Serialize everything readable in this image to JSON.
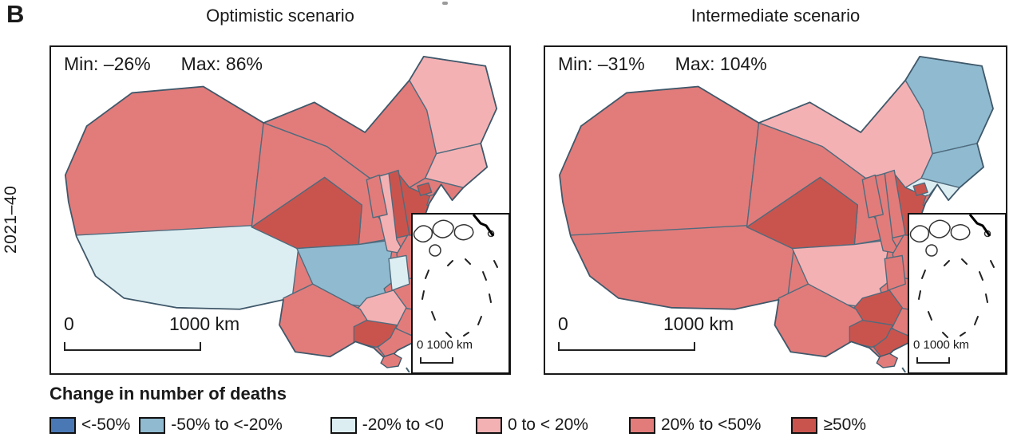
{
  "panel_label": "B",
  "row_label": "2021–40",
  "legend": {
    "title": "Change in number of deaths",
    "items": [
      {
        "label": "<-50%",
        "color": "#4a78b5"
      },
      {
        "label": "-50% to <-20%",
        "color": "#8fbad0"
      },
      {
        "label": "-20% to <0",
        "color": "#ddeef2"
      },
      {
        "label": "0 to < 20%",
        "color": "#f4b1b4"
      },
      {
        "label": "20% to <50%",
        "color": "#e17c7b"
      },
      {
        "label": "≥50%",
        "color": "#c9544e"
      }
    ]
  },
  "maps": [
    {
      "title": "Optimistic scenario",
      "min_label": "Min: –26%",
      "max_label": "Max: 86%",
      "scalebar": {
        "zero": "0",
        "label": "1000 km"
      },
      "inset": {
        "scale_label": "0  1000 km"
      },
      "regions": {
        "xinjiang": 4,
        "tibet": 2,
        "qinghai": 5,
        "gansu": 4,
        "inner_mongolia": 4,
        "heilongjiang": 3,
        "jilin": 3,
        "liaoning": 4,
        "hebei": 5,
        "beijing": 5,
        "tianjin": 4,
        "shanxi": 5,
        "shaanxi": 3,
        "ningxia": 4,
        "shandong": 4,
        "henan": 4,
        "jiangsu": 4,
        "anhui": 5,
        "shanghai": 4,
        "hubei": 4,
        "chongqing": 2,
        "sichuan": 1,
        "guizhou": 3,
        "yunnan": 4,
        "hunan": 4,
        "jiangxi": 4,
        "zhejiang": 4,
        "fujian": 3,
        "guangxi": 5,
        "guangdong": 4,
        "hainan": 4,
        "taiwan": 2
      }
    },
    {
      "title": "Intermediate scenario",
      "min_label": "Min: –31%",
      "max_label": "Max: 104%",
      "scalebar": {
        "zero": "0",
        "label": "1000 km"
      },
      "inset": {
        "scale_label": "0  1000 km"
      },
      "regions": {
        "xinjiang": 4,
        "tibet": 4,
        "qinghai": 5,
        "gansu": 4,
        "inner_mongolia": 3,
        "heilongjiang": 1,
        "jilin": 1,
        "liaoning": 2,
        "hebei": 5,
        "beijing": 5,
        "tianjin": 4,
        "shanxi": 4,
        "shaanxi": 4,
        "ningxia": 4,
        "shandong": 4,
        "henan": 4,
        "jiangsu": 4,
        "anhui": 4,
        "shanghai": 4,
        "hubei": 4,
        "chongqing": 4,
        "sichuan": 3,
        "guizhou": 5,
        "yunnan": 4,
        "hunan": 4,
        "jiangxi": 4,
        "zhejiang": 5,
        "fujian": 5,
        "guangxi": 5,
        "guangdong": 5,
        "hainan": 4,
        "taiwan": 5
      }
    }
  ]
}
